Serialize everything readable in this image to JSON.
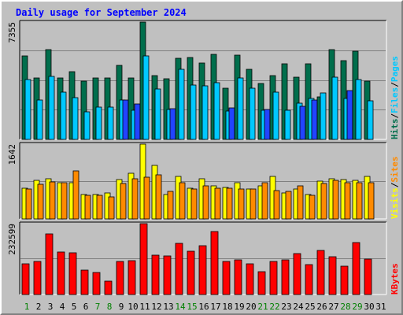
{
  "chart_data": {
    "type": "bar",
    "title": "Daily usage for September 2024",
    "categories": [
      "1",
      "2",
      "3",
      "4",
      "5",
      "6",
      "7",
      "8",
      "9",
      "10",
      "11",
      "12",
      "13",
      "14",
      "15",
      "16",
      "17",
      "18",
      "19",
      "20",
      "21",
      "22",
      "23",
      "24",
      "25",
      "26",
      "27",
      "28",
      "29",
      "30",
      "31"
    ],
    "weekend_days": [
      "1",
      "7",
      "8",
      "14",
      "15",
      "21",
      "22",
      "28",
      "29"
    ],
    "colors": {
      "hits": "#006e4c",
      "files": "#00c8ff",
      "pages": "#2244ff",
      "visits": "#ff8a00",
      "sites": "#ffff00",
      "kbytes": "#ff0000",
      "background": "#c0c0c0",
      "title": "#0000ff",
      "weekend_label": "#008000"
    },
    "panels": [
      {
        "id": "hits-files-pages",
        "ytick": "7355",
        "ymax": 7355,
        "legend": [
          {
            "text": "Hits",
            "color": "#006e4c"
          },
          {
            "text": "/",
            "color": "#000000"
          },
          {
            "text": "Files",
            "color": "#00c8ff"
          },
          {
            "text": "/",
            "color": "#000000"
          },
          {
            "text": "Pages",
            "color": "#00c8ff"
          }
        ],
        "series": [
          {
            "name": "Hits",
            "color": "#006e4c",
            "values": [
              5250,
              3870,
              5620,
              3870,
              4250,
              3640,
              3840,
              3840,
              4650,
              3840,
              7355,
              4020,
              3790,
              5060,
              5150,
              4810,
              5340,
              3190,
              5280,
              4370,
              3510,
              4010,
              4730,
              3880,
              4750,
              2660,
              5650,
              4920,
              5520,
              3660,
              0
            ]
          },
          {
            "name": "Files",
            "color": "#00c8ff",
            "values": [
              3760,
              2460,
              3930,
              2970,
              2610,
              1750,
              2030,
              2000,
              2450,
              1830,
              5210,
              3180,
              1880,
              4390,
              3390,
              3380,
              3570,
              1800,
              3830,
              3200,
              1810,
              2940,
              1820,
              2290,
              2590,
              2900,
              3890,
              2550,
              3760,
              2400,
              0
            ]
          },
          {
            "name": "Pages",
            "color": "#2244ff",
            "values": [
              0,
              0,
              0,
              0,
              0,
              0,
              0,
              0,
              2450,
              2210,
              0,
              0,
              1940,
              0,
              0,
              0,
              0,
              1960,
              0,
              0,
              1880,
              0,
              0,
              2070,
              2460,
              0,
              0,
              3070,
              0,
              0,
              0
            ]
          }
        ]
      },
      {
        "id": "visits-sites",
        "ytick": "1642",
        "ymax": 1642,
        "legend": [
          {
            "text": "Visits",
            "color": "#ffff00"
          },
          {
            "text": "/",
            "color": "#000000"
          },
          {
            "text": "Sites",
            "color": "#ff8a00"
          }
        ],
        "series": [
          {
            "name": "Visits",
            "color": "#ffff00",
            "values": [
              670,
              840,
              880,
              800,
              790,
              540,
              530,
              570,
              860,
              1010,
              1642,
              1170,
              540,
              930,
              670,
              890,
              730,
              700,
              800,
              660,
              720,
              930,
              570,
              660,
              540,
              830,
              880,
              870,
              840,
              940,
              0
            ]
          },
          {
            "name": "Sites",
            "color": "#ff8a00",
            "values": [
              660,
              760,
              820,
              790,
              1050,
              520,
              510,
              490,
              770,
              880,
              910,
              970,
              610,
              800,
              650,
              730,
              670,
              670,
              660,
              660,
              800,
              620,
              610,
              720,
              510,
              780,
              840,
              790,
              790,
              800,
              0
            ]
          }
        ]
      },
      {
        "id": "kbytes",
        "ytick": "232599",
        "ymax": 232599,
        "legend": [
          {
            "text": "KBytes",
            "color": "#ff0000"
          }
        ],
        "series": [
          {
            "name": "KBytes",
            "color": "#ff0000",
            "values": [
              101000,
              108000,
              198000,
              139000,
              138000,
              80000,
              73000,
              44000,
              108000,
              111000,
              232599,
              129000,
              126000,
              168000,
              141000,
              159000,
              206000,
              108000,
              115000,
              101000,
              74000,
              109000,
              113000,
              134000,
              97000,
              146000,
              125000,
              93000,
              170000,
              116000,
              0
            ]
          }
        ]
      }
    ]
  }
}
